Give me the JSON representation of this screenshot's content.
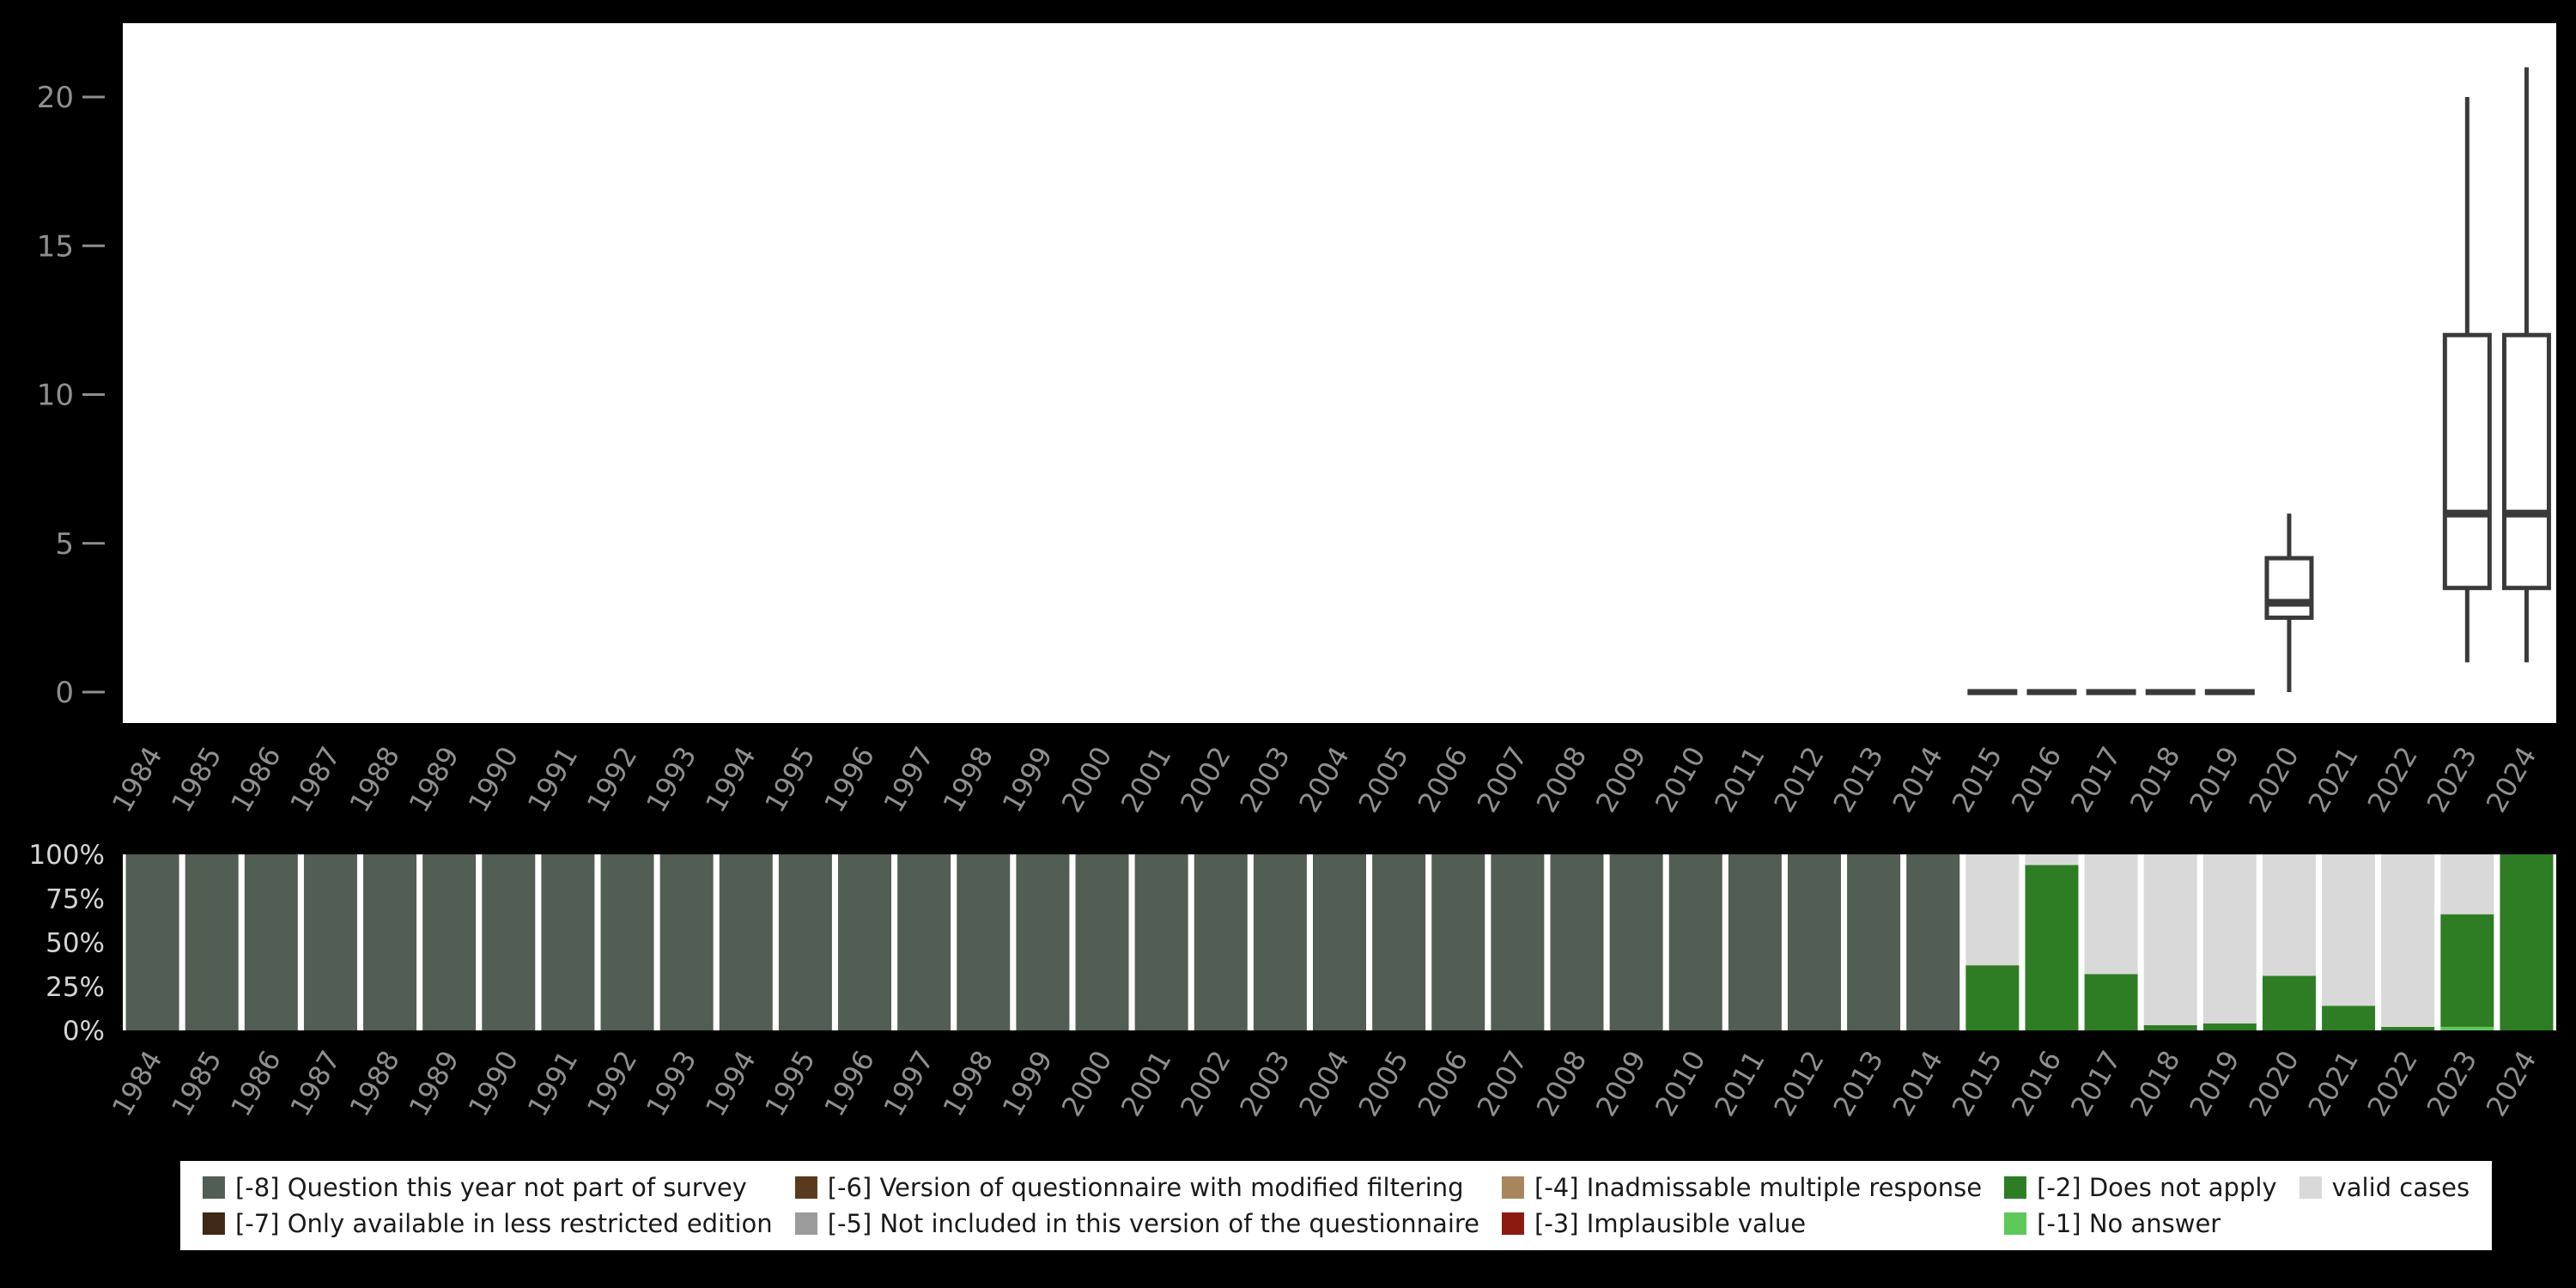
{
  "years": [
    1984,
    1985,
    1986,
    1987,
    1988,
    1989,
    1990,
    1991,
    1992,
    1993,
    1994,
    1995,
    1996,
    1997,
    1998,
    1999,
    2000,
    2001,
    2002,
    2003,
    2004,
    2005,
    2006,
    2007,
    2008,
    2009,
    2010,
    2011,
    2012,
    2013,
    2014,
    2015,
    2016,
    2017,
    2018,
    2019,
    2020,
    2021,
    2022,
    2023,
    2024
  ],
  "colors": {
    "background": "#000000",
    "plot_background": "#ffffff",
    "box_stroke": "#3a3a3a",
    "axis_label": "#8f8f8f",
    "percent_label": "#d4d4d4",
    "legend_text": "#1a1a1a",
    "categories": {
      "-8": "#525d54",
      "-7": "#3e2817",
      "-6": "#5a3a1e",
      "-5": "#9b9b9b",
      "-4": "#a9855e",
      "-3": "#8c1a10",
      "-2": "#2e7d24",
      "-1": "#5ec75a",
      "valid": "#d9d9d9"
    }
  },
  "chart_data": [
    {
      "type": "boxplot",
      "title": "",
      "xlabel": "",
      "ylabel": "",
      "ylim": [
        0,
        21.5
      ],
      "yticks": [
        0,
        5,
        10,
        15,
        20
      ],
      "boxes": [
        {
          "year": 2015,
          "flat": true,
          "value": 0
        },
        {
          "year": 2016,
          "flat": true,
          "value": 0
        },
        {
          "year": 2017,
          "flat": true,
          "value": 0
        },
        {
          "year": 2018,
          "flat": true,
          "value": 0
        },
        {
          "year": 2019,
          "flat": true,
          "value": 0
        },
        {
          "year": 2020,
          "flat": false,
          "min": 0,
          "q1": 2.5,
          "median": 3,
          "q3": 4.5,
          "max": 6
        },
        {
          "year": 2023,
          "flat": false,
          "min": 1,
          "q1": 3.5,
          "median": 6,
          "q3": 12,
          "max": 20
        },
        {
          "year": 2024,
          "flat": false,
          "min": 1,
          "q1": 3.5,
          "median": 6,
          "q3": 12,
          "max": 21
        }
      ]
    },
    {
      "type": "stacked-bar-100",
      "title": "",
      "yticks_percent": [
        0,
        25,
        50,
        75,
        100
      ],
      "bars": [
        [
          {
            "code": "-8",
            "pct": 100
          }
        ],
        [
          {
            "code": "-8",
            "pct": 100
          }
        ],
        [
          {
            "code": "-8",
            "pct": 100
          }
        ],
        [
          {
            "code": "-8",
            "pct": 100
          }
        ],
        [
          {
            "code": "-8",
            "pct": 100
          }
        ],
        [
          {
            "code": "-8",
            "pct": 100
          }
        ],
        [
          {
            "code": "-8",
            "pct": 100
          }
        ],
        [
          {
            "code": "-8",
            "pct": 100
          }
        ],
        [
          {
            "code": "-8",
            "pct": 100
          }
        ],
        [
          {
            "code": "-8",
            "pct": 100
          }
        ],
        [
          {
            "code": "-8",
            "pct": 100
          }
        ],
        [
          {
            "code": "-8",
            "pct": 100
          }
        ],
        [
          {
            "code": "-8",
            "pct": 100
          }
        ],
        [
          {
            "code": "-8",
            "pct": 100
          }
        ],
        [
          {
            "code": "-8",
            "pct": 100
          }
        ],
        [
          {
            "code": "-8",
            "pct": 100
          }
        ],
        [
          {
            "code": "-8",
            "pct": 100
          }
        ],
        [
          {
            "code": "-8",
            "pct": 100
          }
        ],
        [
          {
            "code": "-8",
            "pct": 100
          }
        ],
        [
          {
            "code": "-8",
            "pct": 100
          }
        ],
        [
          {
            "code": "-8",
            "pct": 100
          }
        ],
        [
          {
            "code": "-8",
            "pct": 100
          }
        ],
        [
          {
            "code": "-8",
            "pct": 100
          }
        ],
        [
          {
            "code": "-8",
            "pct": 100
          }
        ],
        [
          {
            "code": "-8",
            "pct": 100
          }
        ],
        [
          {
            "code": "-8",
            "pct": 100
          }
        ],
        [
          {
            "code": "-8",
            "pct": 100
          }
        ],
        [
          {
            "code": "-8",
            "pct": 100
          }
        ],
        [
          {
            "code": "-8",
            "pct": 100
          }
        ],
        [
          {
            "code": "-8",
            "pct": 100
          }
        ],
        [
          {
            "code": "-8",
            "pct": 100
          }
        ],
        [
          {
            "code": "-2",
            "pct": 37
          },
          {
            "code": "valid",
            "pct": 63
          }
        ],
        [
          {
            "code": "-2",
            "pct": 94
          },
          {
            "code": "valid",
            "pct": 6
          }
        ],
        [
          {
            "code": "-2",
            "pct": 32
          },
          {
            "code": "valid",
            "pct": 68
          }
        ],
        [
          {
            "code": "-2",
            "pct": 3
          },
          {
            "code": "valid",
            "pct": 97
          }
        ],
        [
          {
            "code": "-2",
            "pct": 4
          },
          {
            "code": "valid",
            "pct": 96
          }
        ],
        [
          {
            "code": "-2",
            "pct": 31
          },
          {
            "code": "valid",
            "pct": 69
          }
        ],
        [
          {
            "code": "-2",
            "pct": 14
          },
          {
            "code": "valid",
            "pct": 86
          }
        ],
        [
          {
            "code": "-2",
            "pct": 2
          },
          {
            "code": "valid",
            "pct": 98
          }
        ],
        [
          {
            "code": "-1",
            "pct": 2
          },
          {
            "code": "-2",
            "pct": 64
          },
          {
            "code": "valid",
            "pct": 34
          }
        ],
        [
          {
            "code": "-2",
            "pct": 100
          }
        ]
      ]
    }
  ],
  "legend": {
    "items": [
      {
        "code": "-8",
        "label": "[-8] Question this year not part of survey"
      },
      {
        "code": "-7",
        "label": "[-7] Only available in less restricted edition"
      },
      {
        "code": "-6",
        "label": "[-6] Version of questionnaire with modified filtering"
      },
      {
        "code": "-5",
        "label": "[-5] Not included in this version of the questionnaire"
      },
      {
        "code": "-4",
        "label": "[-4] Inadmissable multiple response"
      },
      {
        "code": "-3",
        "label": "[-3] Implausible value"
      },
      {
        "code": "-2",
        "label": "[-2] Does not apply"
      },
      {
        "code": "-1",
        "label": "[-1] No answer"
      },
      {
        "code": "valid",
        "label": "valid cases"
      }
    ]
  }
}
